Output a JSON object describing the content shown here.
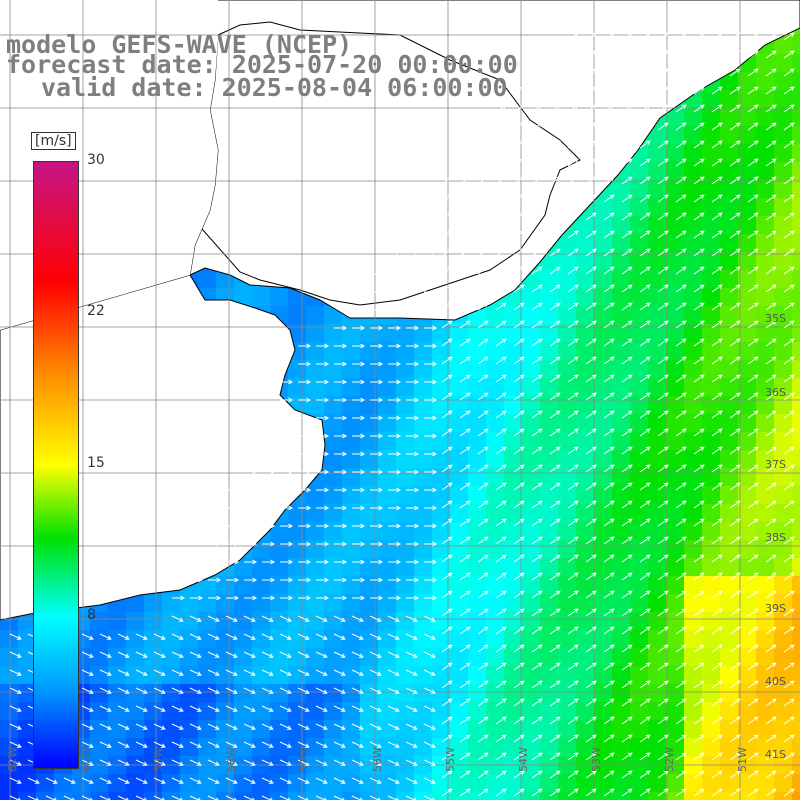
{
  "title": {
    "model": "modelo GEFS-WAVE (NCEP)",
    "forecast": "forecast date: 2025-07-20 00:00:00",
    "valid": "valid date: 2025-08-04 06:00:00"
  },
  "colorbar": {
    "unit": "[m/s]",
    "min": 0,
    "max": 30,
    "ticks": [
      "30",
      "22",
      "15",
      "8"
    ],
    "colors": [
      "#0000ff",
      "#0099ff",
      "#00ffff",
      "#00e000",
      "#ffff00",
      "#ff8c00",
      "#ff0000",
      "#c71585"
    ]
  },
  "lat_labels": [
    "35S",
    "36S",
    "37S",
    "38S",
    "39S",
    "40S",
    "41S"
  ],
  "lon_labels": [
    "61W",
    "60W",
    "59W",
    "58W",
    "57W",
    "56W",
    "55W",
    "54W",
    "53W",
    "52W",
    "51W"
  ],
  "colors": {
    "land": "#ffffff",
    "coast": "#000000",
    "grid": "#888888",
    "arrow": "#ffffff",
    "title": "#7f7f7f"
  }
}
